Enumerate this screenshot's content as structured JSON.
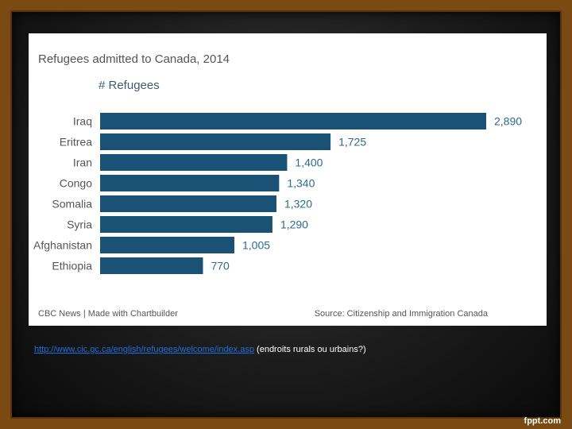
{
  "chart_data": {
    "type": "bar",
    "orientation": "horizontal",
    "title": "Refugees admitted to Canada, 2014",
    "ylabel": "# Refugees",
    "categories": [
      "Iraq",
      "Eritrea",
      "Iran",
      "Congo",
      "Somalia",
      "Syria",
      "Afghanistan",
      "Ethiopia"
    ],
    "values": [
      2890,
      1725,
      1400,
      1340,
      1320,
      1290,
      1005,
      770
    ],
    "value_labels": [
      "2,890",
      "1,725",
      "1,400",
      "1,340",
      "1,320",
      "1,290",
      "1,005",
      "770"
    ],
    "xlim": [
      0,
      2890
    ],
    "grid": false,
    "bar_color": "#1a5276",
    "label_color": "#2c6a97"
  },
  "footer": {
    "credit": "CBC News | Made with Chartbuilder",
    "source": "Source: Citizenship and Immigration Canada"
  },
  "slide": {
    "link_text": "http://www.cic.gc.ca/english/refugees/welcome/index.asp",
    "link_note": " (endroits rurals ou urbains?)",
    "brand": "fppt.com"
  }
}
